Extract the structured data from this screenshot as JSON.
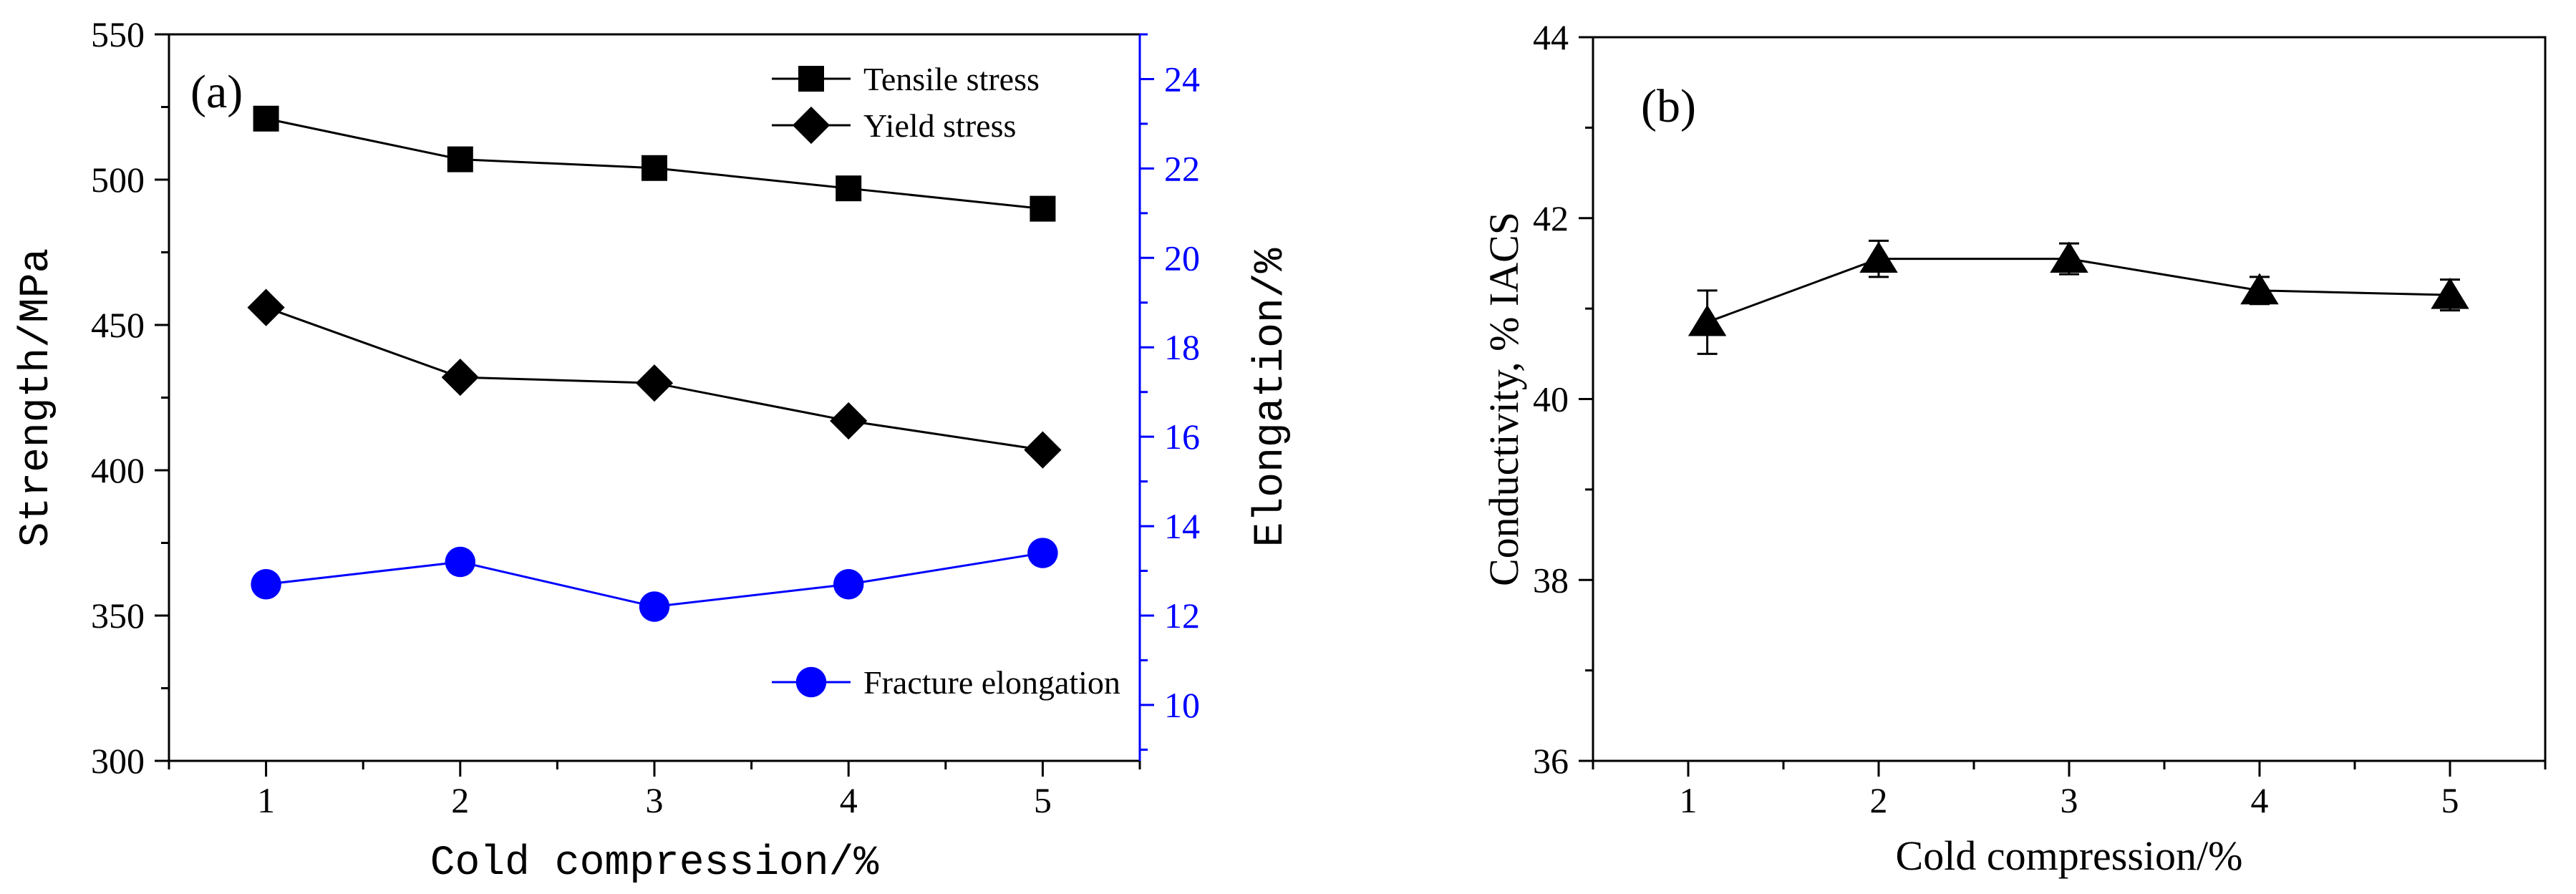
{
  "colors": {
    "black": "#000000",
    "blue": "#0000ff"
  },
  "chart_data": [
    {
      "type": "line",
      "panel_label": "(a)",
      "xlabel": "Cold compression/%",
      "ylabel": "Strength/MPa",
      "y2label": "Elongation/%",
      "xlim": [
        0.5,
        5.5
      ],
      "ylim": [
        300,
        550
      ],
      "y2lim": [
        8.75,
        25
      ],
      "x_ticks": [
        1,
        2,
        3,
        4,
        5
      ],
      "x_tick_labels": [
        "1",
        "2",
        "3",
        "4",
        "5"
      ],
      "y_ticks": [
        300,
        350,
        400,
        450,
        500,
        550
      ],
      "y_tick_labels": [
        "300",
        "350",
        "400",
        "450",
        "500",
        "550"
      ],
      "y2_ticks": [
        10,
        12,
        14,
        16,
        18,
        20,
        22,
        24
      ],
      "y2_tick_labels": [
        "10",
        "12",
        "14",
        "16",
        "18",
        "20",
        "22",
        "24"
      ],
      "x": [
        1,
        2,
        3,
        4,
        5
      ],
      "series": [
        {
          "name": "Tensile stress",
          "axis": "left",
          "marker": "square",
          "color": "#000000",
          "values": [
            521,
            507,
            504,
            497,
            490
          ]
        },
        {
          "name": "Yield stress",
          "axis": "left",
          "marker": "diamond",
          "color": "#000000",
          "values": [
            456,
            432,
            430,
            417,
            407
          ]
        },
        {
          "name": "Fracture elongation",
          "axis": "right",
          "marker": "circle",
          "color": "#0000ff",
          "values": [
            12.7,
            13.2,
            12.2,
            12.7,
            13.4
          ]
        }
      ]
    },
    {
      "type": "line",
      "panel_label": "(b)",
      "xlabel": "Cold compression/%",
      "ylabel": "Conductivity, % IACS",
      "xlim": [
        0.5,
        5.5
      ],
      "ylim": [
        36,
        44
      ],
      "x_ticks": [
        1,
        2,
        3,
        4,
        5
      ],
      "x_tick_labels": [
        "1",
        "2",
        "3",
        "4",
        "5"
      ],
      "y_ticks": [
        36,
        38,
        40,
        42,
        44
      ],
      "y_tick_labels": [
        "36",
        "38",
        "40",
        "42",
        "44"
      ],
      "x": [
        1.1,
        2,
        3,
        4,
        5
      ],
      "series": [
        {
          "name": "Conductivity",
          "marker": "triangle",
          "color": "#000000",
          "values": [
            40.85,
            41.55,
            41.55,
            41.2,
            41.15
          ],
          "errors": [
            0.35,
            0.2,
            0.17,
            0.15,
            0.17
          ]
        }
      ]
    }
  ]
}
